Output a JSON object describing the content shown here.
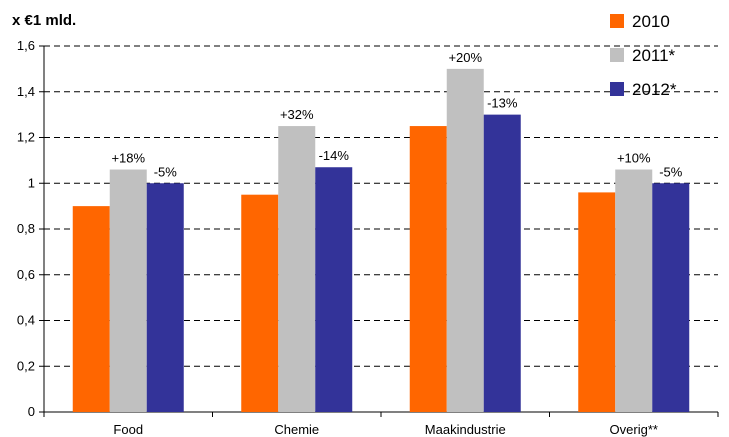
{
  "chart_data": {
    "type": "bar",
    "unit_label": "x €1 mld.",
    "categories": [
      "Food",
      "Chemie",
      "Maakindustrie",
      "Overig**"
    ],
    "series": [
      {
        "name": "2010",
        "color": "#ff6600",
        "values": [
          0.9,
          0.95,
          1.25,
          0.96
        ]
      },
      {
        "name": "2011*",
        "color": "#c0c0c0",
        "values": [
          1.06,
          1.25,
          1.5,
          1.06
        ]
      },
      {
        "name": "2012*",
        "color": "#333399",
        "values": [
          1.0,
          1.07,
          1.3,
          1.0
        ]
      }
    ],
    "annotations": [
      {
        "category": 0,
        "series": 1,
        "text": "+18%"
      },
      {
        "category": 0,
        "series": 2,
        "text": "-5%"
      },
      {
        "category": 1,
        "series": 1,
        "text": "+32%"
      },
      {
        "category": 1,
        "series": 2,
        "text": "-14%"
      },
      {
        "category": 2,
        "series": 1,
        "text": "+20%"
      },
      {
        "category": 2,
        "series": 2,
        "text": "-13%"
      },
      {
        "category": 3,
        "series": 1,
        "text": "+10%"
      },
      {
        "category": 3,
        "series": 2,
        "text": "-5%"
      }
    ],
    "ylim": [
      0,
      1.6
    ],
    "yticks": [
      "0",
      "0,2",
      "0,4",
      "0,6",
      "0,8",
      "1",
      "1,2",
      "1,4",
      "1,6"
    ],
    "grid": true,
    "legend_position": "top-right"
  }
}
